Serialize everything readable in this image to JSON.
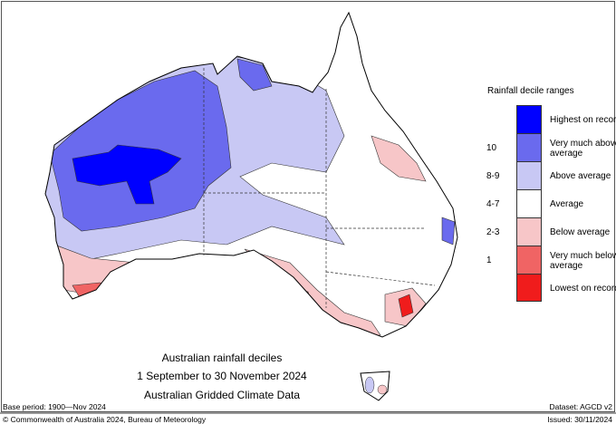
{
  "legend": {
    "title": "Rainfall decile ranges",
    "items": [
      {
        "label": "Highest on record",
        "decile": "",
        "color": "#0000ff"
      },
      {
        "label": "Very much above average",
        "decile": "10",
        "color": "#6a6aee"
      },
      {
        "label": "Above average",
        "decile": "8-9",
        "color": "#c8c8f4"
      },
      {
        "label": "Average",
        "decile": "4-7",
        "color": "#ffffff"
      },
      {
        "label": "Below average",
        "decile": "2-3",
        "color": "#f7c6c8"
      },
      {
        "label": "Very much below average",
        "decile": "1",
        "color": "#f06464"
      },
      {
        "label": "Lowest on record",
        "decile": "",
        "color": "#f01c1c"
      }
    ]
  },
  "titles": {
    "line1": "Australian rainfall deciles",
    "line2": "1 September to 30 November 2024",
    "line3": "Australian Gridded Climate Data"
  },
  "footer": {
    "base_period": "Base period: 1900—Nov 2024",
    "dataset": "Dataset: AGCD v2",
    "copyright": "© Commonwealth of Australia 2024, Bureau of Meteorology",
    "issued": "Issued: 30/11/2024"
  }
}
